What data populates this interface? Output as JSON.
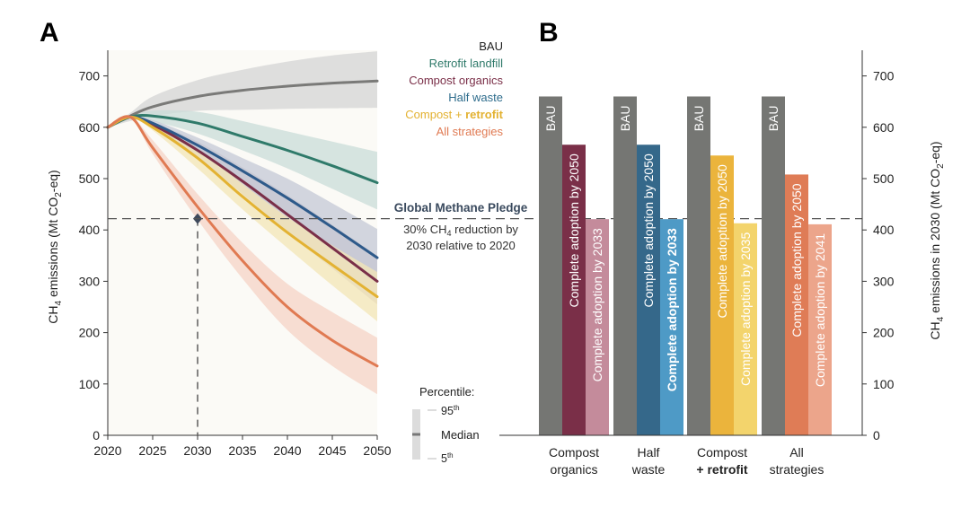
{
  "panel_a_letter": "A",
  "panel_b_letter": "B",
  "pledge": {
    "title": "Global Methane Pledge",
    "line1_pre": "30% CH",
    "line1_sub": "4",
    "line1_post": " reduction by",
    "line2": "2030 relative to 2020",
    "value": 422,
    "marker_year": 2030
  },
  "percentile_legend": {
    "title": "Percentile:",
    "p95": "95",
    "p95_sup": "th",
    "median": "Median",
    "p5": "5",
    "p5_sup": "th"
  },
  "series_labels": [
    {
      "key": "bau",
      "pre": "BAU",
      "emph": "",
      "color": "#222222"
    },
    {
      "key": "landfill",
      "pre": "Retrofit landfill",
      "emph": "",
      "color": "#2f7a6a"
    },
    {
      "key": "compost",
      "pre": "Compost organics",
      "emph": "",
      "color": "#7a2f48"
    },
    {
      "key": "half",
      "pre": "Half waste",
      "emph": "",
      "color": "#2e6c8c"
    },
    {
      "key": "combo",
      "pre": "Compost + ",
      "emph": "retrofit",
      "color": "#e3b232"
    },
    {
      "key": "all",
      "pre": "All strategies",
      "emph": "",
      "color": "#e07a52"
    }
  ],
  "chart_data": [
    {
      "type": "line",
      "panel": "A",
      "title": "",
      "xlabel": "",
      "ylabel_pre": "CH",
      "ylabel_sub": "4",
      "ylabel_mid": " emissions (Mt CO",
      "ylabel_sub2": "2",
      "ylabel_post": "-eq)",
      "xlim": [
        2020,
        2050
      ],
      "ylim": [
        0,
        750
      ],
      "x_ticks": [
        "2020",
        "2025",
        "2030",
        "2035",
        "2040",
        "2045",
        "2050"
      ],
      "y_ticks": [
        "0",
        "100",
        "200",
        "300",
        "400",
        "500",
        "600",
        "700"
      ],
      "x": [
        2020,
        2022.5,
        2025,
        2030,
        2035,
        2040,
        2045,
        2050
      ],
      "series": [
        {
          "name": "BAU",
          "color": "#7a7a78",
          "band": "#d4d4d4",
          "median": [
            600,
            622,
            640,
            660,
            672,
            680,
            686,
            690
          ],
          "p5": [
            600,
            612,
            622,
            632,
            634,
            636,
            637,
            638
          ],
          "p95": [
            600,
            628,
            660,
            692,
            712,
            728,
            740,
            748
          ]
        },
        {
          "name": "Retrofit landfill",
          "color": "#2f7a6a",
          "band": "#c9dcd8",
          "median": [
            600,
            620,
            622,
            608,
            582,
            555,
            525,
            492
          ],
          "p5": [
            600,
            620,
            612,
            588,
            555,
            520,
            480,
            440
          ],
          "p95": [
            600,
            620,
            632,
            630,
            612,
            592,
            572,
            552
          ]
        },
        {
          "name": "Compost organics",
          "color": "#7a2f48",
          "band": "#c9c2c8",
          "median": [
            600,
            620,
            605,
            555,
            495,
            430,
            365,
            300
          ],
          "p5": [
            600,
            620,
            600,
            540,
            470,
            395,
            325,
            255
          ],
          "p95": [
            600,
            620,
            610,
            572,
            522,
            468,
            410,
            350
          ]
        },
        {
          "name": "Half waste",
          "color": "#2e5a8a",
          "band": "#c4c8d6",
          "median": [
            600,
            620,
            608,
            565,
            515,
            462,
            405,
            346
          ],
          "p5": [
            600,
            620,
            602,
            550,
            488,
            425,
            360,
            294
          ],
          "p95": [
            600,
            620,
            614,
            580,
            540,
            500,
            452,
            402
          ]
        },
        {
          "name": "Compost + retrofit",
          "color": "#e3b232",
          "band": "#f3e6b6",
          "median": [
            600,
            620,
            600,
            540,
            465,
            395,
            332,
            270
          ],
          "p5": [
            600,
            620,
            594,
            520,
            440,
            365,
            292,
            222
          ],
          "p95": [
            600,
            620,
            606,
            558,
            490,
            425,
            370,
            318
          ]
        },
        {
          "name": "All strategies",
          "color": "#e07a52",
          "band": "#f6d3c5",
          "median": [
            600,
            620,
            560,
            445,
            340,
            250,
            185,
            135
          ],
          "p5": [
            600,
            620,
            548,
            420,
            305,
            205,
            135,
            80
          ],
          "p95": [
            600,
            620,
            575,
            470,
            375,
            295,
            240,
            190
          ]
        }
      ]
    },
    {
      "type": "bar",
      "panel": "B",
      "title": "",
      "ylabel_pre": "CH",
      "ylabel_sub": "4",
      "ylabel_mid": " emissions in 2030 (Mt CO",
      "ylabel_sub2": "2",
      "ylabel_post": "-eq)",
      "ylim": [
        0,
        750
      ],
      "y_ticks": [
        "0",
        "100",
        "200",
        "300",
        "400",
        "500",
        "600",
        "700"
      ],
      "categories": [
        {
          "line1": "Compost",
          "line2": "organics",
          "line2_bold": false
        },
        {
          "line1": "Half",
          "line2": "waste",
          "line2_bold": false
        },
        {
          "line1": "Compost",
          "line2": "+ retrofit",
          "line2_bold": true
        },
        {
          "line1": "All",
          "line2": "strategies",
          "line2_bold": false
        }
      ],
      "groups": [
        [
          {
            "label": "BAU",
            "value": 660,
            "color": "#757673",
            "bold": false
          },
          {
            "label": "Complete adoption by 2050",
            "value": 566,
            "color": "#7a2f48",
            "bold": false
          },
          {
            "label": "Complete adoption by 2033",
            "value": 421,
            "color": "#c48b9b",
            "bold": false
          }
        ],
        [
          {
            "label": "BAU",
            "value": 660,
            "color": "#757673",
            "bold": false
          },
          {
            "label": "Complete adoption by 2050",
            "value": 566,
            "color": "#35688a",
            "bold": false
          },
          {
            "label": "Complete adoption by 2033",
            "value": 421,
            "color": "#4e9ac6",
            "bold": true
          }
        ],
        [
          {
            "label": "BAU",
            "value": 660,
            "color": "#757673",
            "bold": false
          },
          {
            "label": "Complete adoption by 2050",
            "value": 545,
            "color": "#ebb43c",
            "bold": false
          },
          {
            "label": "Complete adoption by 2035",
            "value": 413,
            "color": "#f3d46c",
            "bold": false
          }
        ],
        [
          {
            "label": "BAU",
            "value": 660,
            "color": "#757673",
            "bold": false
          },
          {
            "label": "Complete adoption by 2050",
            "value": 508,
            "color": "#df7c56",
            "bold": false
          },
          {
            "label": "Complete adoption by 2041",
            "value": 411,
            "color": "#eca58b",
            "bold": false
          }
        ]
      ]
    }
  ]
}
